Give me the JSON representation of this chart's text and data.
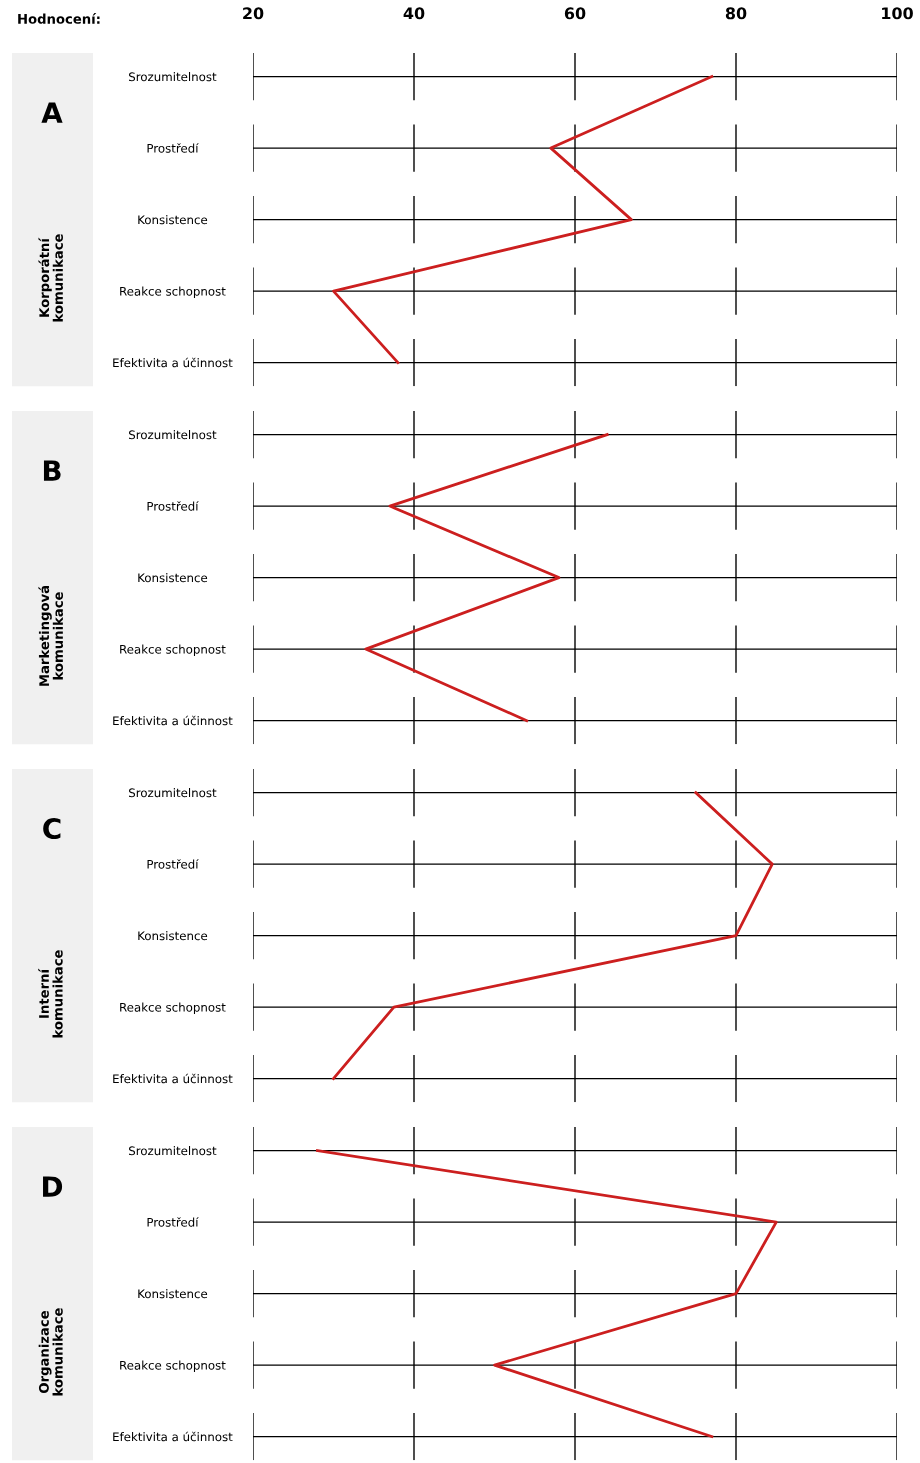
{
  "chart_data": [
    {
      "type": "line",
      "orientation": "horizontal",
      "title": "A",
      "ylabel": "Korporátní komunikace",
      "xlabel": "Hodnocení:",
      "categories": [
        "Srozumitelnost",
        "Prostředí",
        "Konsistence",
        "Reakce schopnost",
        "Efektivita a účinnost"
      ],
      "values": [
        77,
        57,
        67,
        30,
        38
      ],
      "color": "#cc1f1f",
      "xlim": [
        20,
        100
      ],
      "xticks": [
        20,
        40,
        60,
        80,
        100
      ],
      "grid": true
    },
    {
      "type": "line",
      "orientation": "horizontal",
      "title": "B",
      "ylabel": "Marketingová komunikace",
      "categories": [
        "Srozumitelnost",
        "Prostředí",
        "Konsistence",
        "Reakce schopnost",
        "Efektivita a účinnost"
      ],
      "values": [
        64,
        37,
        58,
        34,
        54
      ],
      "color": "#cc1f1f",
      "xlim": [
        20,
        100
      ],
      "xticks": [
        20,
        40,
        60,
        80,
        100
      ],
      "grid": true,
      "tick_labels": "y"
    },
    {
      "type": "line",
      "orientation": "horizontal",
      "title": "C",
      "ylabel": "Interní komunikace",
      "categories": [
        "Srozumitelnost",
        "Prostředí",
        "Konsistence",
        "Reakce schopnost",
        "Efektivita a účinnost"
      ],
      "values": [
        75,
        84.5,
        80,
        37.5,
        30
      ],
      "color": "#cc1f1f",
      "xlim": [
        20,
        100
      ],
      "xticks": [
        20,
        40,
        60,
        80,
        100
      ],
      "grid": true,
      "tick_labels": "y"
    },
    {
      "type": "line",
      "orientation": "horizontal",
      "title": "D",
      "ylabel": "Organizace komunikace",
      "categories": [
        "Srozumitelnost",
        "Prostředí",
        "Konsistence",
        "Reakce schopnost",
        "Efektivita a účinnost"
      ],
      "values": [
        28,
        85,
        80,
        50,
        77
      ],
      "color": "#cc1f1f",
      "xlim": [
        20,
        100
      ],
      "xticks": [
        20,
        40,
        60,
        80,
        100
      ],
      "grid": true,
      "tick_labels": "y"
    }
  ]
}
